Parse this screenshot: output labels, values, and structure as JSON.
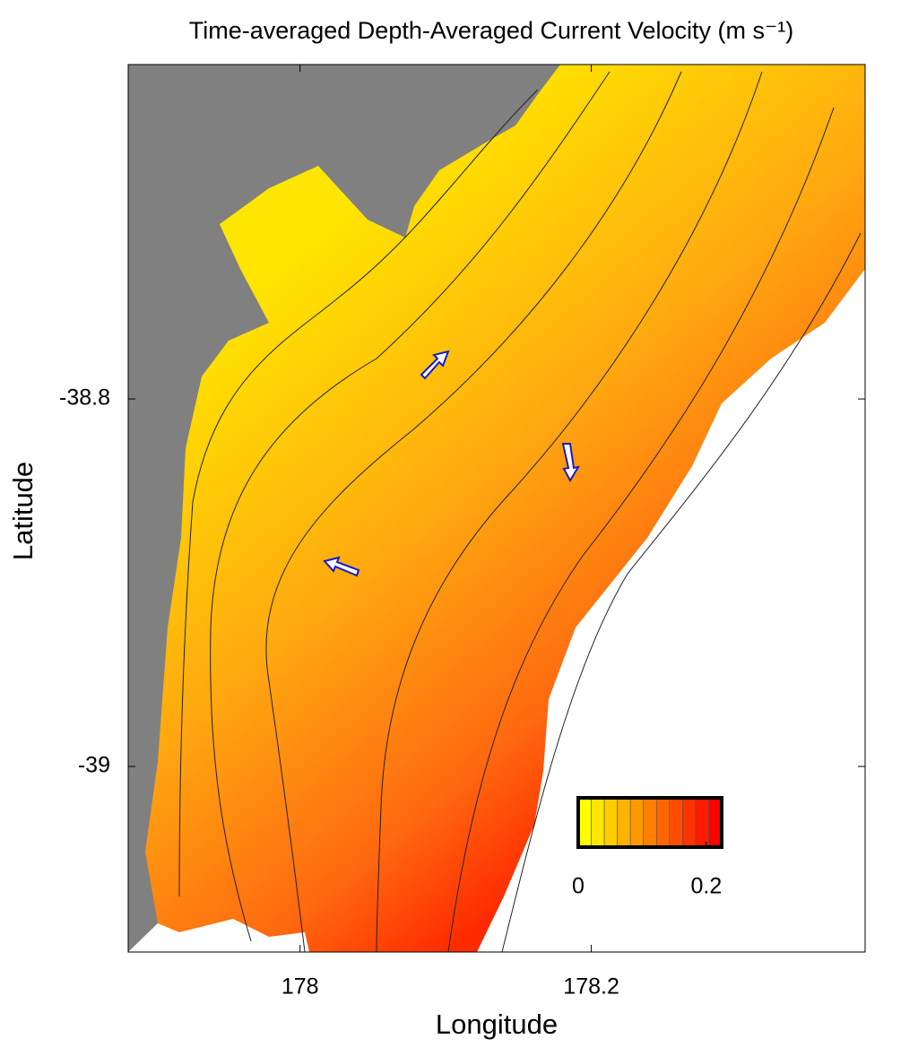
{
  "chart_data": {
    "type": "map",
    "title": "Time-averaged Depth-Averaged Current Velocity (m s⁻¹)",
    "x_label": "Longitude",
    "y_label": "Latitude",
    "xlim": [
      177.882,
      178.388
    ],
    "ylim": [
      -39.101,
      -38.618
    ],
    "xticks": [
      178,
      178.2
    ],
    "yticks": [
      -38.8,
      -39
    ],
    "colorbar": {
      "lim": [
        0,
        0.224
      ],
      "ticks": [
        0,
        0.2
      ],
      "colors": [
        "#ffff00",
        "#ff0000"
      ]
    },
    "land_color": "#808080"
  }
}
